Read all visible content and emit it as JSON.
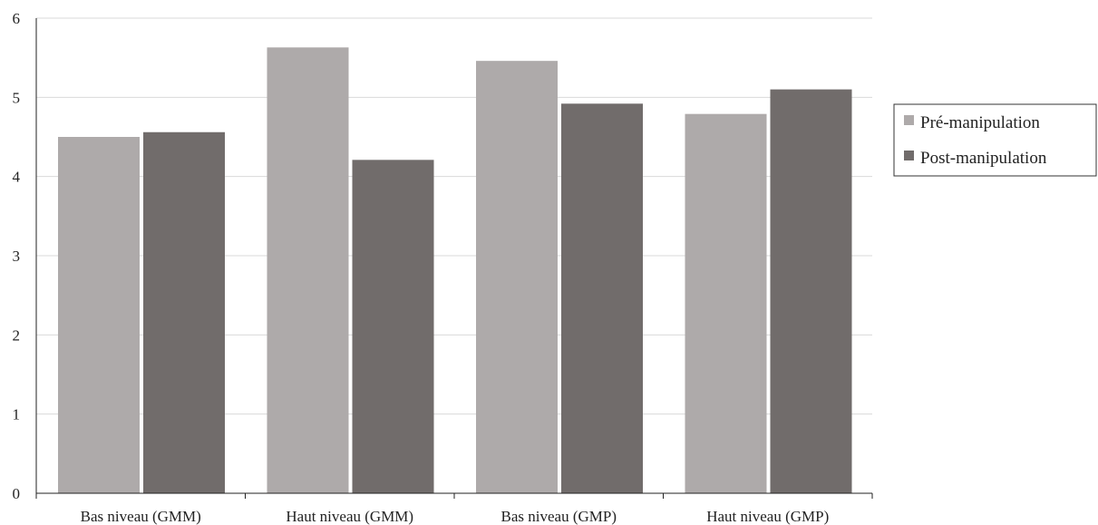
{
  "chart_data": {
    "type": "bar",
    "categories": [
      "Bas niveau (GMM)",
      "Haut niveau (GMM)",
      "Bas niveau (GMP)",
      "Haut niveau (GMP)"
    ],
    "series": [
      {
        "name": "Pré-manipulation",
        "values": [
          4.5,
          5.63,
          5.46,
          4.79
        ],
        "color": "#aeaaaa"
      },
      {
        "name": "Post-manipulation",
        "values": [
          4.56,
          4.21,
          4.92,
          5.1
        ],
        "color": "#716c6b"
      }
    ],
    "title": "",
    "xlabel": "",
    "ylabel": "",
    "ylim": [
      0,
      6
    ],
    "yticks": [
      "0",
      "1",
      "2",
      "3",
      "4",
      "5",
      "6"
    ],
    "grid": "horizontal",
    "legend_position": "right"
  }
}
